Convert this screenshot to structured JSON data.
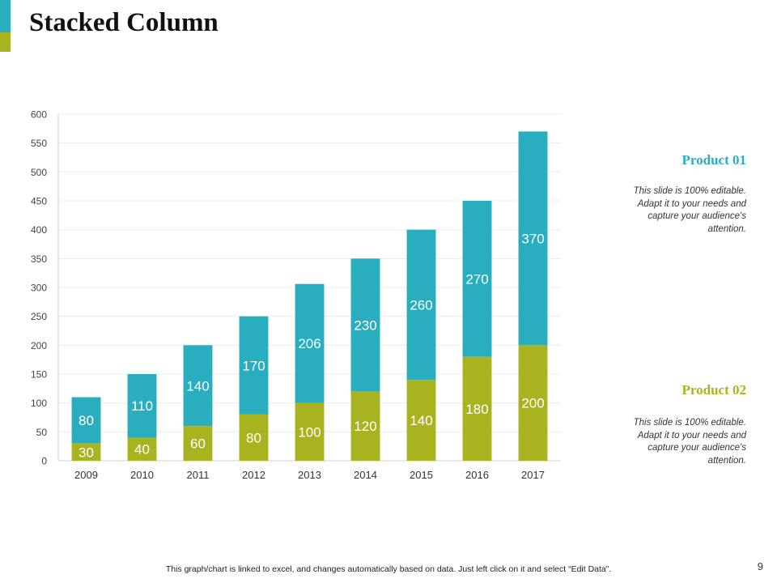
{
  "slide": {
    "title": "Stacked Column",
    "page_number": "9",
    "footer_note": "This graph/chart is linked to excel,  and changes automatically based on data. Just left click on it and select “Edit Data”."
  },
  "legend": {
    "product1": {
      "title": "Product 01",
      "desc": "This slide is 100% editable. Adapt it to your needs and capture your audience's attention."
    },
    "product2": {
      "title": "Product 02",
      "desc": "This slide is 100% editable. Adapt it to your needs and capture your audience's attention."
    }
  },
  "colors": {
    "product1": "#29aebf",
    "product2": "#a9b320",
    "accent_top": "#29aebf",
    "accent_bottom": "#a9b320"
  },
  "chart_data": {
    "type": "bar",
    "stacked": true,
    "title": "Stacked Column",
    "xlabel": "",
    "ylabel": "",
    "ylim": [
      0,
      600
    ],
    "yticks": [
      0,
      50,
      100,
      150,
      200,
      250,
      300,
      350,
      400,
      450,
      500,
      550,
      600
    ],
    "categories": [
      "2009",
      "2010",
      "2011",
      "2012",
      "2013",
      "2014",
      "2015",
      "2016",
      "2017"
    ],
    "series": [
      {
        "name": "Product 02",
        "values": [
          30,
          40,
          60,
          80,
          100,
          120,
          140,
          180,
          200
        ]
      },
      {
        "name": "Product 01",
        "values": [
          80,
          110,
          140,
          170,
          206,
          230,
          260,
          270,
          370
        ]
      }
    ],
    "grid": true,
    "legend_position": "right"
  }
}
